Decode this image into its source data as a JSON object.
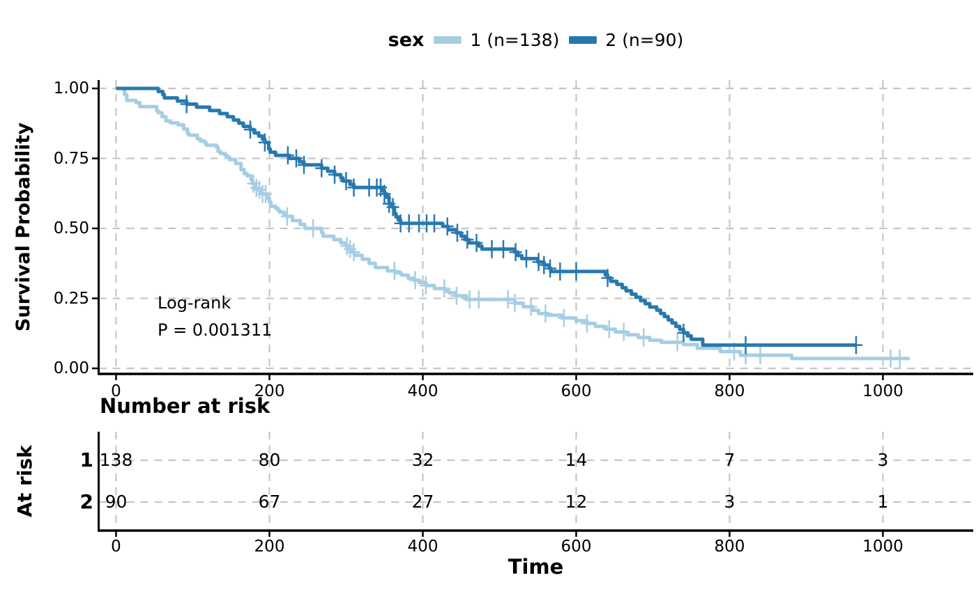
{
  "legend": {
    "title": "sex",
    "items": [
      {
        "label": "1 (n=138)",
        "color": "#a6cee3"
      },
      {
        "label": "2 (n=90)",
        "color": "#2878b0"
      }
    ]
  },
  "axes": {
    "y_title": "Survival Probability",
    "x_title": "Time"
  },
  "annotation": {
    "line1": "Log-rank",
    "line2": "P = 0.001311"
  },
  "risk_table": {
    "title": "Number at risk",
    "axis_label": "At risk",
    "rows": [
      {
        "label": "1",
        "values": [
          "138",
          "80",
          "32",
          "14",
          "7",
          "3"
        ]
      },
      {
        "label": "2",
        "values": [
          "90",
          "67",
          "27",
          "12",
          "3",
          "1"
        ]
      }
    ]
  },
  "chart_data": {
    "type": "line",
    "subtype": "kaplan-meier-step",
    "title": "",
    "xlabel": "Time",
    "ylabel": "Survival Probability",
    "xlim": [
      0,
      1100
    ],
    "ylim": [
      0,
      1
    ],
    "grid": true,
    "legend_position": "top",
    "x_ticks": [
      {
        "v": 0,
        "label": "0"
      },
      {
        "v": 200,
        "label": "200"
      },
      {
        "v": 400,
        "label": "400"
      },
      {
        "v": 600,
        "label": "600"
      },
      {
        "v": 800,
        "label": "800"
      },
      {
        "v": 1000,
        "label": "1000"
      }
    ],
    "y_ticks": [
      {
        "v": 0,
        "label": "0.00"
      },
      {
        "v": 0.25,
        "label": "0.25"
      },
      {
        "v": 0.5,
        "label": "0.50"
      },
      {
        "v": 0.75,
        "label": "0.75"
      },
      {
        "v": 1,
        "label": "1.00"
      }
    ],
    "series": [
      {
        "name": "1 (n=138)",
        "color": "#a6cee3",
        "steps": [
          [
            0,
            1.0
          ],
          [
            11,
            0.978
          ],
          [
            14,
            0.957
          ],
          [
            26,
            0.949
          ],
          [
            31,
            0.935
          ],
          [
            53,
            0.92
          ],
          [
            55,
            0.913
          ],
          [
            60,
            0.899
          ],
          [
            65,
            0.884
          ],
          [
            71,
            0.877
          ],
          [
            81,
            0.87
          ],
          [
            88,
            0.855
          ],
          [
            93,
            0.84
          ],
          [
            95,
            0.833
          ],
          [
            106,
            0.82
          ],
          [
            110,
            0.812
          ],
          [
            116,
            0.804
          ],
          [
            118,
            0.797
          ],
          [
            131,
            0.79
          ],
          [
            133,
            0.775
          ],
          [
            136,
            0.768
          ],
          [
            142,
            0.761
          ],
          [
            145,
            0.754
          ],
          [
            148,
            0.746
          ],
          [
            156,
            0.732
          ],
          [
            163,
            0.71
          ],
          [
            167,
            0.696
          ],
          [
            171,
            0.688
          ],
          [
            176,
            0.674
          ],
          [
            178,
            0.66
          ],
          [
            181,
            0.645
          ],
          [
            184,
            0.638
          ],
          [
            190,
            0.623
          ],
          [
            197,
            0.608
          ],
          [
            200,
            0.594
          ],
          [
            202,
            0.579
          ],
          [
            208,
            0.572
          ],
          [
            211,
            0.565
          ],
          [
            213,
            0.558
          ],
          [
            219,
            0.55
          ],
          [
            222,
            0.543
          ],
          [
            230,
            0.528
          ],
          [
            240,
            0.514
          ],
          [
            246,
            0.5
          ],
          [
            268,
            0.485
          ],
          [
            270,
            0.472
          ],
          [
            284,
            0.46
          ],
          [
            293,
            0.448
          ],
          [
            300,
            0.437
          ],
          [
            303,
            0.426
          ],
          [
            307,
            0.415
          ],
          [
            311,
            0.404
          ],
          [
            321,
            0.39
          ],
          [
            330,
            0.375
          ],
          [
            338,
            0.36
          ],
          [
            354,
            0.348
          ],
          [
            364,
            0.341
          ],
          [
            372,
            0.333
          ],
          [
            381,
            0.322
          ],
          [
            388,
            0.315
          ],
          [
            395,
            0.307
          ],
          [
            404,
            0.296
          ],
          [
            415,
            0.285
          ],
          [
            429,
            0.276
          ],
          [
            434,
            0.27
          ],
          [
            443,
            0.259
          ],
          [
            457,
            0.246
          ],
          [
            520,
            0.233
          ],
          [
            531,
            0.22
          ],
          [
            543,
            0.207
          ],
          [
            551,
            0.196
          ],
          [
            563,
            0.19
          ],
          [
            581,
            0.18
          ],
          [
            600,
            0.17
          ],
          [
            614,
            0.16
          ],
          [
            625,
            0.15
          ],
          [
            639,
            0.14
          ],
          [
            651,
            0.13
          ],
          [
            666,
            0.12
          ],
          [
            681,
            0.11
          ],
          [
            696,
            0.1
          ],
          [
            711,
            0.093
          ],
          [
            740,
            0.085
          ],
          [
            758,
            0.072
          ],
          [
            788,
            0.06
          ],
          [
            814,
            0.047
          ],
          [
            881,
            0.035
          ],
          [
            1035,
            0.035
          ]
        ],
        "censor_times": [
          179,
          183,
          187,
          191,
          195,
          223,
          257,
          301,
          305,
          310,
          363,
          390,
          404,
          428,
          444,
          461,
          473,
          511,
          520,
          541,
          560,
          584,
          614,
          643,
          662,
          688,
          732,
          806,
          821,
          840,
          1010,
          1022
        ]
      },
      {
        "name": "2 (n=90)",
        "color": "#2878b0",
        "steps": [
          [
            0,
            1.0
          ],
          [
            55,
            0.989
          ],
          [
            61,
            0.978
          ],
          [
            63,
            0.966
          ],
          [
            80,
            0.955
          ],
          [
            92,
            0.944
          ],
          [
            105,
            0.933
          ],
          [
            122,
            0.921
          ],
          [
            135,
            0.91
          ],
          [
            145,
            0.899
          ],
          [
            153,
            0.887
          ],
          [
            160,
            0.876
          ],
          [
            166,
            0.864
          ],
          [
            175,
            0.853
          ],
          [
            180,
            0.841
          ],
          [
            186,
            0.83
          ],
          [
            191,
            0.818
          ],
          [
            194,
            0.807
          ],
          [
            199,
            0.784
          ],
          [
            201,
            0.772
          ],
          [
            208,
            0.761
          ],
          [
            226,
            0.75
          ],
          [
            239,
            0.738
          ],
          [
            245,
            0.727
          ],
          [
            268,
            0.715
          ],
          [
            276,
            0.704
          ],
          [
            285,
            0.692
          ],
          [
            293,
            0.68
          ],
          [
            296,
            0.669
          ],
          [
            305,
            0.657
          ],
          [
            310,
            0.646
          ],
          [
            348,
            0.634
          ],
          [
            350,
            0.623
          ],
          [
            353,
            0.611
          ],
          [
            356,
            0.588
          ],
          [
            360,
            0.576
          ],
          [
            363,
            0.553
          ],
          [
            365,
            0.541
          ],
          [
            368,
            0.53
          ],
          [
            371,
            0.518
          ],
          [
            426,
            0.507
          ],
          [
            433,
            0.495
          ],
          [
            444,
            0.484
          ],
          [
            450,
            0.472
          ],
          [
            455,
            0.46
          ],
          [
            460,
            0.448
          ],
          [
            473,
            0.437
          ],
          [
            477,
            0.426
          ],
          [
            520,
            0.415
          ],
          [
            524,
            0.403
          ],
          [
            529,
            0.392
          ],
          [
            550,
            0.38
          ],
          [
            558,
            0.369
          ],
          [
            565,
            0.357
          ],
          [
            567,
            0.346
          ],
          [
            638,
            0.334
          ],
          [
            641,
            0.323
          ],
          [
            645,
            0.311
          ],
          [
            653,
            0.3
          ],
          [
            660,
            0.288
          ],
          [
            665,
            0.277
          ],
          [
            672,
            0.265
          ],
          [
            678,
            0.254
          ],
          [
            684,
            0.242
          ],
          [
            690,
            0.231
          ],
          [
            696,
            0.219
          ],
          [
            705,
            0.208
          ],
          [
            710,
            0.196
          ],
          [
            715,
            0.185
          ],
          [
            720,
            0.173
          ],
          [
            725,
            0.162
          ],
          [
            730,
            0.15
          ],
          [
            735,
            0.139
          ],
          [
            740,
            0.127
          ],
          [
            745,
            0.116
          ],
          [
            750,
            0.104
          ],
          [
            765,
            0.083
          ],
          [
            965,
            0.083
          ]
        ],
        "censor_times": [
          92,
          175,
          194,
          224,
          235,
          245,
          268,
          285,
          300,
          310,
          330,
          340,
          345,
          350,
          356,
          361,
          371,
          382,
          395,
          405,
          415,
          432,
          445,
          458,
          470,
          490,
          505,
          521,
          535,
          551,
          558,
          566,
          579,
          600,
          641,
          740,
          821,
          965
        ]
      }
    ],
    "annotations": [
      "Log-rank",
      "P = 0.001311"
    ],
    "risk_table_rows": [
      {
        "label": "1",
        "values": [
          138,
          80,
          32,
          14,
          7,
          3
        ]
      },
      {
        "label": "2",
        "values": [
          90,
          67,
          27,
          12,
          3,
          1
        ]
      }
    ]
  }
}
